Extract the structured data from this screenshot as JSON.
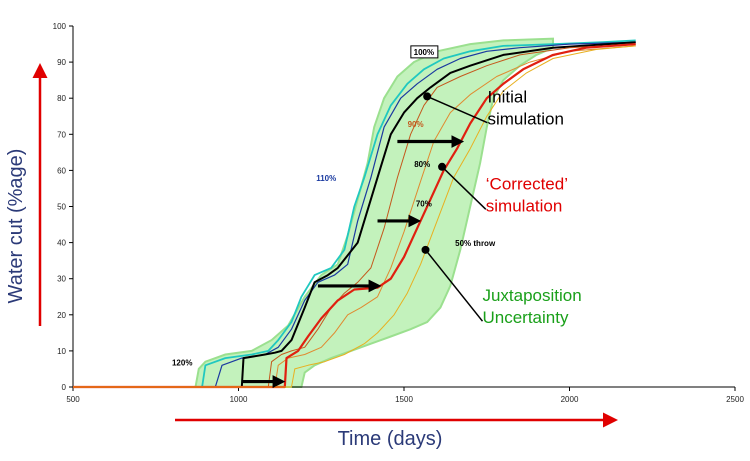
{
  "chart_data": {
    "type": "line",
    "xlabel": "Time (days)",
    "ylabel": "Water cut (%age)",
    "xlim": [
      500,
      2500
    ],
    "ylim": [
      0,
      100
    ],
    "xticks": [
      500,
      1000,
      1500,
      2000,
      2500
    ],
    "yticks": [
      0,
      10,
      20,
      30,
      40,
      50,
      60,
      70,
      80,
      90,
      100
    ],
    "grid": false,
    "series": [
      {
        "name": "120%",
        "color": "#20c8c0",
        "width": 1.8,
        "points": [
          [
            500,
            0
          ],
          [
            890,
            0
          ],
          [
            900,
            6
          ],
          [
            960,
            8
          ],
          [
            1040,
            9
          ],
          [
            1090,
            10
          ],
          [
            1120,
            13
          ],
          [
            1160,
            18
          ],
          [
            1190,
            25
          ],
          [
            1230,
            31
          ],
          [
            1280,
            33
          ],
          [
            1320,
            38
          ],
          [
            1350,
            50
          ],
          [
            1380,
            58
          ],
          [
            1420,
            70
          ],
          [
            1460,
            78
          ],
          [
            1510,
            84
          ],
          [
            1560,
            88
          ],
          [
            1620,
            91
          ],
          [
            1700,
            93
          ],
          [
            1800,
            94.5
          ],
          [
            1950,
            95
          ],
          [
            2100,
            95.5
          ],
          [
            2200,
            96
          ]
        ]
      },
      {
        "name": "110%",
        "color": "#1a3aa0",
        "width": 1.2,
        "points": [
          [
            500,
            0
          ],
          [
            930,
            0
          ],
          [
            950,
            6
          ],
          [
            1010,
            8
          ],
          [
            1080,
            9
          ],
          [
            1120,
            11
          ],
          [
            1160,
            16
          ],
          [
            1200,
            24
          ],
          [
            1240,
            29
          ],
          [
            1290,
            31
          ],
          [
            1330,
            34
          ],
          [
            1360,
            46
          ],
          [
            1400,
            58
          ],
          [
            1440,
            72
          ],
          [
            1490,
            80
          ],
          [
            1540,
            84
          ],
          [
            1600,
            88
          ],
          [
            1670,
            91
          ],
          [
            1750,
            93
          ],
          [
            1850,
            94
          ],
          [
            2000,
            95
          ],
          [
            2200,
            95.5
          ]
        ]
      },
      {
        "name": "100%",
        "color": "#000000",
        "width": 2.0,
        "points": [
          [
            500,
            0
          ],
          [
            1010,
            0
          ],
          [
            1015,
            8
          ],
          [
            1080,
            9
          ],
          [
            1110,
            9.5
          ],
          [
            1130,
            10
          ],
          [
            1160,
            13
          ],
          [
            1200,
            22
          ],
          [
            1230,
            29
          ],
          [
            1270,
            31
          ],
          [
            1300,
            33
          ],
          [
            1360,
            40
          ],
          [
            1390,
            49
          ],
          [
            1430,
            61
          ],
          [
            1460,
            70
          ],
          [
            1500,
            76
          ],
          [
            1540,
            80
          ],
          [
            1580,
            83
          ],
          [
            1640,
            87
          ],
          [
            1700,
            89
          ],
          [
            1800,
            92
          ],
          [
            1950,
            94
          ],
          [
            2200,
            95.5
          ]
        ]
      },
      {
        "name": "90%",
        "color": "#c4581c",
        "width": 1.0,
        "points": [
          [
            500,
            0
          ],
          [
            1090,
            0
          ],
          [
            1100,
            7
          ],
          [
            1130,
            9
          ],
          [
            1160,
            10
          ],
          [
            1200,
            11
          ],
          [
            1240,
            16
          ],
          [
            1280,
            22
          ],
          [
            1320,
            26
          ],
          [
            1360,
            29
          ],
          [
            1400,
            33
          ],
          [
            1440,
            44
          ],
          [
            1480,
            58
          ],
          [
            1520,
            70
          ],
          [
            1560,
            78
          ],
          [
            1600,
            83
          ],
          [
            1670,
            86
          ],
          [
            1750,
            89
          ],
          [
            1850,
            92
          ],
          [
            2000,
            94
          ],
          [
            2200,
            95
          ]
        ]
      },
      {
        "name": "80%",
        "color": "#e08a30",
        "width": 1.0,
        "points": [
          [
            500,
            0
          ],
          [
            1110,
            0
          ],
          [
            1120,
            6
          ],
          [
            1150,
            8
          ],
          [
            1200,
            9
          ],
          [
            1250,
            11
          ],
          [
            1290,
            15
          ],
          [
            1330,
            20
          ],
          [
            1370,
            22
          ],
          [
            1420,
            25
          ],
          [
            1460,
            33
          ],
          [
            1500,
            43
          ],
          [
            1550,
            57
          ],
          [
            1590,
            68
          ],
          [
            1640,
            76
          ],
          [
            1700,
            81
          ],
          [
            1780,
            86
          ],
          [
            1880,
            90
          ],
          [
            2000,
            93
          ],
          [
            2200,
            94.5
          ]
        ]
      },
      {
        "name": "70%",
        "color": "#e02010",
        "width": 2.2,
        "points": [
          [
            500,
            0
          ],
          [
            1140,
            0
          ],
          [
            1145,
            8
          ],
          [
            1180,
            10
          ],
          [
            1210,
            14
          ],
          [
            1250,
            19
          ],
          [
            1300,
            24
          ],
          [
            1350,
            27
          ],
          [
            1420,
            27.5
          ],
          [
            1460,
            30
          ],
          [
            1500,
            36
          ],
          [
            1540,
            44
          ],
          [
            1580,
            52
          ],
          [
            1620,
            60
          ],
          [
            1660,
            66
          ],
          [
            1700,
            73
          ],
          [
            1750,
            80
          ],
          [
            1800,
            84
          ],
          [
            1860,
            88
          ],
          [
            1950,
            92
          ],
          [
            2050,
            94
          ],
          [
            2200,
            95
          ]
        ]
      },
      {
        "name": "50% throw",
        "color": "#e8b020",
        "width": 1.0,
        "points": [
          [
            500,
            0
          ],
          [
            1160,
            0
          ],
          [
            1170,
            5
          ],
          [
            1210,
            6
          ],
          [
            1260,
            7
          ],
          [
            1320,
            9
          ],
          [
            1380,
            12
          ],
          [
            1420,
            15
          ],
          [
            1470,
            20
          ],
          [
            1510,
            26
          ],
          [
            1550,
            34
          ],
          [
            1600,
            46
          ],
          [
            1650,
            58
          ],
          [
            1700,
            66
          ],
          [
            1750,
            75
          ],
          [
            1800,
            82
          ],
          [
            1870,
            87
          ],
          [
            1950,
            91
          ],
          [
            2080,
            93.5
          ],
          [
            2200,
            94.5
          ]
        ]
      }
    ],
    "uncertainty_band": {
      "color": "#b8f0b0",
      "upper": [
        [
          870,
          0
        ],
        [
          880,
          5
        ],
        [
          900,
          7
        ],
        [
          960,
          9
        ],
        [
          1040,
          10
        ],
        [
          1100,
          13
        ],
        [
          1150,
          17
        ],
        [
          1200,
          25
        ],
        [
          1250,
          31
        ],
        [
          1300,
          34
        ],
        [
          1330,
          42
        ],
        [
          1360,
          52
        ],
        [
          1390,
          62
        ],
        [
          1410,
          72
        ],
        [
          1440,
          80
        ],
        [
          1480,
          86
        ],
        [
          1530,
          90
        ],
        [
          1600,
          93
        ],
        [
          1700,
          95
        ],
        [
          1800,
          96
        ],
        [
          1950,
          96.5
        ]
      ],
      "lower": [
        [
          1950,
          94
        ],
        [
          1900,
          92
        ],
        [
          1850,
          89
        ],
        [
          1800,
          85
        ],
        [
          1770,
          80
        ],
        [
          1750,
          72
        ],
        [
          1730,
          62
        ],
        [
          1700,
          50
        ],
        [
          1670,
          38
        ],
        [
          1640,
          28
        ],
        [
          1610,
          22
        ],
        [
          1570,
          18
        ],
        [
          1520,
          16
        ],
        [
          1460,
          14
        ],
        [
          1400,
          12
        ],
        [
          1340,
          10
        ],
        [
          1280,
          8
        ],
        [
          1230,
          6
        ],
        [
          1200,
          4
        ],
        [
          1190,
          0
        ]
      ]
    },
    "arrows": [
      [
        [
          1010,
          1.5
        ],
        [
          1130,
          1.5
        ]
      ],
      [
        [
          1240,
          28
        ],
        [
          1420,
          28
        ]
      ],
      [
        [
          1420,
          46
        ],
        [
          1540,
          46
        ]
      ],
      [
        [
          1480,
          68
        ],
        [
          1670,
          68
        ]
      ]
    ],
    "inline_labels": [
      {
        "text": "120%",
        "x": 830,
        "y": 6,
        "color": "#000000"
      },
      {
        "text": "110%",
        "x": 1265,
        "y": 57,
        "color": "#1a3aa0"
      },
      {
        "text": "100%",
        "x": 1560,
        "y": 92,
        "color": "#000000",
        "boxed": true
      },
      {
        "text": "90%",
        "x": 1535,
        "y": 72,
        "color": "#c4581c"
      },
      {
        "text": "80%",
        "x": 1555,
        "y": 61,
        "color": "#000000"
      },
      {
        "text": "70%",
        "x": 1560,
        "y": 50,
        "color": "#000000"
      },
      {
        "text": "50% throw",
        "x": 1715,
        "y": 39,
        "color": "#000000"
      }
    ],
    "annotations": [
      {
        "lines": [
          "Initial",
          "simulation"
        ],
        "color": "#000000",
        "point": [
          1570,
          80.5
        ],
        "label_x": 1595,
        "label_y": 76
      },
      {
        "lines": [
          "‘Corrected’",
          "simulation"
        ],
        "color": "#e00000",
        "point": [
          1615,
          61
        ],
        "label_x": 1590,
        "label_y": 52
      },
      {
        "lines": [
          "Juxtaposition",
          "Uncertainty"
        ],
        "color": "#1aa01a",
        "point": [
          1565,
          38
        ],
        "label_x": 1580,
        "label_y": 21
      }
    ]
  }
}
